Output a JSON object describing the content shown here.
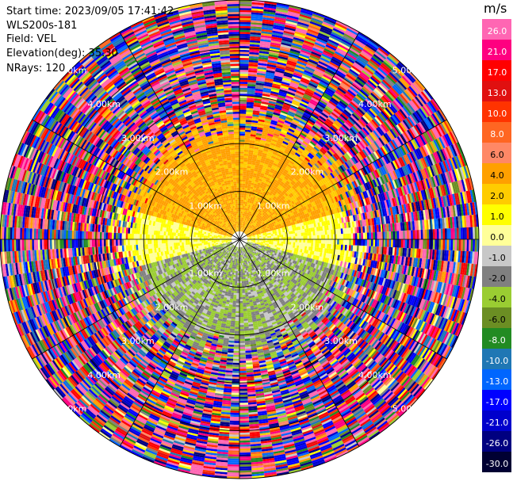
{
  "header": {
    "start_time": "Start time: 2023/09/05 17:41:42",
    "instrument": "WLS200s-181",
    "field": "Field: VEL",
    "elevation": "Elevation(deg): 35.30",
    "nrays": "NRays: 120"
  },
  "colorbar": {
    "unit": "m/s",
    "ticks": [
      "26.0",
      "21.0",
      "17.0",
      "13.0",
      "10.0",
      "8.0",
      "6.0",
      "4.0",
      "2.0",
      "1.0",
      "0.0",
      "-1.0",
      "-2.0",
      "-4.0",
      "-6.0",
      "-8.0",
      "-10.0",
      "-13.0",
      "-17.0",
      "-21.0",
      "-26.0",
      "-30.0"
    ],
    "colors": [
      "#ff66b3",
      "#ff0080",
      "#ff0000",
      "#e01010",
      "#ff3300",
      "#ff6622",
      "#ff8866",
      "#ffa000",
      "#ffcc00",
      "#ffff00",
      "#ffff99",
      "#c8c8c8",
      "#808080",
      "#9acd32",
      "#6b8e23",
      "#228b22",
      "#1f77b4",
      "#0066ff",
      "#0000ff",
      "#0000cc",
      "#000080",
      "#000033"
    ]
  },
  "range_labels": [
    "1.00km",
    "2.00km",
    "3.00km",
    "4.00km",
    "5.00km"
  ],
  "chart_data": {
    "type": "ppi",
    "field": "VEL",
    "units": "m/s",
    "n_rays": 120,
    "range_rings_km": [
      1,
      2,
      3,
      4,
      5
    ],
    "max_range_km": 5.0,
    "near_field": {
      "north_sector_velocity_ms": [
        1.0,
        4.0
      ],
      "south_sector_velocity_ms": [
        -6.0,
        -1.0
      ],
      "east_west_band_velocity_ms": [
        -1.0,
        1.0
      ],
      "clean_range_km": 2.0
    },
    "far_field": "noise"
  }
}
